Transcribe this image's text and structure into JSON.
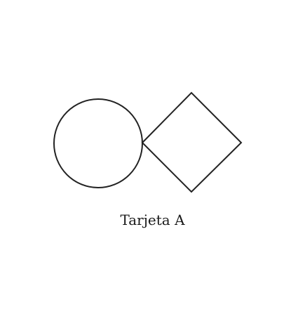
{
  "card": {
    "caption": "Tarjeta A",
    "shapes": [
      {
        "kind": "circle",
        "name": "circle"
      },
      {
        "kind": "diamond",
        "name": "diamond"
      }
    ],
    "stroke_color": "#222222",
    "background_color": "#ffffff"
  }
}
